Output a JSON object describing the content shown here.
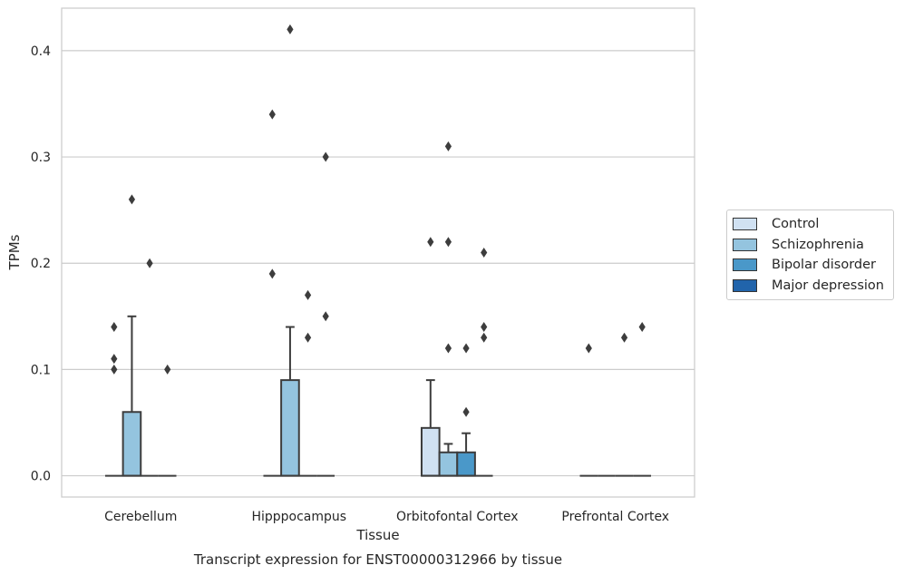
{
  "chart_data": {
    "type": "box",
    "caption": "Transcript expression for ENST00000312966 by tissue",
    "xlabel": "Tissue",
    "ylabel": "TPMs",
    "ylim": [
      -0.02,
      0.44
    ],
    "yticks": [
      0.0,
      0.1,
      0.2,
      0.3,
      0.4
    ],
    "ytick_labels": [
      "0.0",
      "0.1",
      "0.2",
      "0.3",
      "0.4"
    ],
    "grid": "horizontal",
    "legend_position": "right",
    "categories": [
      "Cerebellum",
      "Hipppocampus",
      "Orbitofontal Cortex",
      "Prefrontal Cortex"
    ],
    "series": [
      {
        "name": "Control",
        "color": "#d0e1f2",
        "boxes": [
          {
            "q1": 0,
            "median": 0,
            "q3": 0,
            "whisker_low": 0,
            "whisker_high": 0,
            "outliers": [
              0.14,
              0.11,
              0.1
            ]
          },
          {
            "q1": 0,
            "median": 0,
            "q3": 0,
            "whisker_low": 0,
            "whisker_high": 0,
            "outliers": [
              0.34,
              0.19
            ]
          },
          {
            "q1": 0,
            "median": 0,
            "q3": 0.045,
            "whisker_low": 0,
            "whisker_high": 0.09,
            "outliers": [
              0.22
            ]
          },
          {
            "q1": 0,
            "median": 0,
            "q3": 0,
            "whisker_low": 0,
            "whisker_high": 0,
            "outliers": [
              0.12
            ]
          }
        ]
      },
      {
        "name": "Schizophrenia",
        "color": "#94c4df",
        "boxes": [
          {
            "q1": 0,
            "median": 0,
            "q3": 0.06,
            "whisker_low": 0,
            "whisker_high": 0.15,
            "outliers": [
              0.26
            ]
          },
          {
            "q1": 0,
            "median": 0,
            "q3": 0.09,
            "whisker_low": 0,
            "whisker_high": 0.14,
            "outliers": [
              0.42
            ]
          },
          {
            "q1": 0,
            "median": 0,
            "q3": 0.022,
            "whisker_low": 0,
            "whisker_high": 0.03,
            "outliers": [
              0.31,
              0.22,
              0.12
            ]
          },
          {
            "q1": 0,
            "median": 0,
            "q3": 0,
            "whisker_low": 0,
            "whisker_high": 0,
            "outliers": []
          }
        ]
      },
      {
        "name": "Bipolar disorder",
        "color": "#4a98c9",
        "boxes": [
          {
            "q1": 0,
            "median": 0,
            "q3": 0,
            "whisker_low": 0,
            "whisker_high": 0,
            "outliers": [
              0.2
            ]
          },
          {
            "q1": 0,
            "median": 0,
            "q3": 0,
            "whisker_low": 0,
            "whisker_high": 0,
            "outliers": [
              0.17,
              0.13
            ]
          },
          {
            "q1": 0,
            "median": 0,
            "q3": 0.022,
            "whisker_low": 0,
            "whisker_high": 0.04,
            "outliers": [
              0.12,
              0.06
            ]
          },
          {
            "q1": 0,
            "median": 0,
            "q3": 0,
            "whisker_low": 0,
            "whisker_high": 0,
            "outliers": [
              0.13
            ]
          }
        ]
      },
      {
        "name": "Major depression",
        "color": "#2164ab",
        "boxes": [
          {
            "q1": 0,
            "median": 0,
            "q3": 0,
            "whisker_low": 0,
            "whisker_high": 0,
            "outliers": [
              0.1
            ]
          },
          {
            "q1": 0,
            "median": 0,
            "q3": 0,
            "whisker_low": 0,
            "whisker_high": 0,
            "outliers": [
              0.3,
              0.15
            ]
          },
          {
            "q1": 0,
            "median": 0,
            "q3": 0,
            "whisker_low": 0,
            "whisker_high": 0,
            "outliers": [
              0.21,
              0.14,
              0.13
            ]
          },
          {
            "q1": 0,
            "median": 0,
            "q3": 0,
            "whisker_low": 0,
            "whisker_high": 0,
            "outliers": [
              0.14
            ]
          }
        ]
      }
    ]
  }
}
